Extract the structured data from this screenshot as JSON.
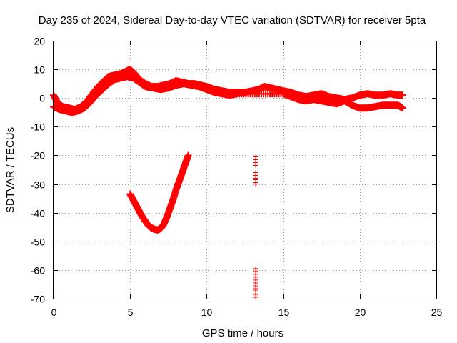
{
  "chart_data": {
    "type": "scatter",
    "title": "Day 235 of 2024, Sidereal Day-to-day VTEC variation (SDTVAR) for receiver 5pta",
    "xlabel": "GPS time / hours",
    "ylabel": "SDTVAR / TECUs",
    "xlim": [
      0,
      25
    ],
    "ylim": [
      -70,
      20
    ],
    "xticks": [
      0,
      5,
      10,
      15,
      20,
      25
    ],
    "yticks": [
      -70,
      -60,
      -50,
      -40,
      -30,
      -20,
      -10,
      0,
      10,
      20
    ],
    "grid": true,
    "marker": "+",
    "colors": {
      "series": "#ff0000",
      "grid": "#a0a0a0",
      "axes": "#000000"
    },
    "series": [
      {
        "name": "main-upper",
        "x": [
          0.0,
          0.3,
          0.6,
          1.0,
          1.4,
          1.8,
          2.2,
          2.6,
          3.0,
          3.3,
          3.6,
          4.0,
          4.4,
          4.8,
          5.0,
          5.3,
          5.6,
          6.0,
          6.4,
          6.8,
          7.2,
          7.6,
          8.0,
          8.4,
          8.8,
          9.2,
          9.6,
          10.0,
          10.5,
          11.0,
          11.5,
          12.0,
          12.5,
          13.0,
          13.4,
          13.8,
          14.2,
          14.6,
          15.0,
          15.5,
          16.0,
          16.5,
          17.0,
          17.5,
          18.0,
          18.5,
          19.0,
          19.5,
          20.0,
          20.5,
          21.0,
          21.5,
          22.0,
          22.5,
          22.8
        ],
        "y": [
          1.0,
          -2.0,
          -3.0,
          -3.5,
          -4.0,
          -3.0,
          -1.0,
          2.0,
          4.5,
          6.0,
          7.5,
          8.0,
          8.5,
          9.5,
          10.0,
          8.5,
          6.5,
          5.0,
          4.0,
          4.0,
          4.5,
          5.0,
          6.0,
          5.5,
          5.0,
          5.0,
          4.5,
          4.0,
          3.0,
          2.5,
          2.0,
          2.0,
          2.0,
          2.5,
          3.0,
          4.0,
          3.5,
          3.0,
          2.5,
          2.0,
          1.0,
          0.5,
          1.0,
          1.5,
          0.5,
          0.0,
          -0.5,
          0.0,
          1.0,
          1.5,
          1.0,
          1.0,
          1.5,
          1.0,
          1.0
        ]
      },
      {
        "name": "main-lower",
        "x": [
          0.0,
          0.4,
          0.8,
          1.2,
          1.6,
          2.0,
          2.4,
          2.8,
          3.2,
          3.6,
          4.0,
          4.4,
          4.8,
          5.2,
          5.6,
          6.0,
          6.5,
          7.0,
          7.5,
          8.0,
          8.5,
          9.0,
          9.5,
          10.0,
          10.5,
          11.0,
          11.5,
          12.0,
          13.0,
          14.0,
          15.0,
          15.5,
          16.0,
          16.5,
          17.0,
          17.5,
          18.0,
          18.5,
          19.0,
          19.5,
          20.0,
          20.5,
          21.0,
          21.5,
          22.0,
          22.5,
          22.8
        ],
        "y": [
          -3.0,
          -4.0,
          -4.5,
          -5.0,
          -4.5,
          -3.5,
          -1.5,
          1.0,
          3.0,
          5.0,
          6.5,
          7.0,
          7.5,
          7.0,
          5.5,
          4.0,
          3.5,
          3.0,
          3.5,
          4.5,
          5.0,
          4.5,
          4.0,
          3.0,
          2.0,
          1.5,
          1.0,
          1.5,
          1.5,
          1.5,
          1.5,
          0.5,
          -0.5,
          -1.0,
          -0.5,
          -1.0,
          -1.5,
          -2.0,
          -1.0,
          -2.5,
          -3.5,
          -3.5,
          -3.0,
          -2.5,
          -2.5,
          -2.5,
          -3.5
        ]
      },
      {
        "name": "v-arc",
        "x": [
          5.0,
          5.2,
          5.4,
          5.6,
          5.8,
          6.0,
          6.2,
          6.4,
          6.6,
          6.8,
          7.0,
          7.2,
          7.4,
          7.6,
          7.8,
          8.0,
          8.2,
          8.4,
          8.6,
          8.8
        ],
        "y": [
          -33.5,
          -35.5,
          -37.5,
          -39.5,
          -41.5,
          -43.0,
          -44.5,
          -45.3,
          -45.8,
          -46.0,
          -45.5,
          -44.0,
          -41.5,
          -38.5,
          -35.5,
          -32.0,
          -29.0,
          -26.0,
          -23.0,
          -20.0
        ]
      },
      {
        "name": "outliers-upper",
        "x": [
          13.2,
          13.2,
          13.2,
          13.2,
          13.2,
          13.2,
          13.2,
          13.2,
          13.2,
          13.2
        ],
        "y": [
          -20.5,
          -21.5,
          -22.5,
          -23.5,
          -26.0,
          -27.0,
          -28.0,
          -28.5,
          -29.5,
          -30.0
        ]
      },
      {
        "name": "outliers-lower",
        "x": [
          13.2,
          13.2,
          13.2,
          13.2,
          13.2,
          13.2,
          13.2,
          13.2,
          13.2,
          13.2,
          13.2
        ],
        "y": [
          -59.5,
          -60.5,
          -61.5,
          -62.5,
          -63.5,
          -64.5,
          -65.5,
          -66.5,
          -67.0,
          -68.5,
          -69.5
        ]
      }
    ]
  }
}
